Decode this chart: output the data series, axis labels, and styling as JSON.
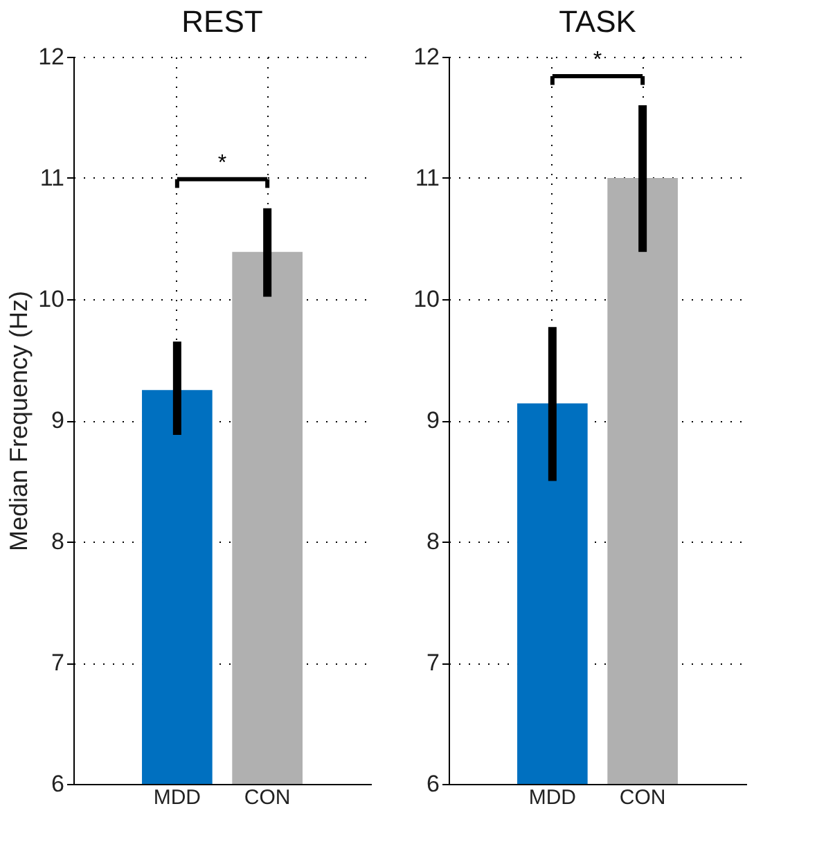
{
  "chart_data": [
    {
      "type": "bar",
      "title": "REST",
      "ylabel": "Median Frequency (Hz)",
      "categories": [
        "MDD",
        "CON"
      ],
      "values": [
        9.25,
        10.39
      ],
      "colors": [
        "#0070c0",
        "#b0b0b0"
      ],
      "errors": [
        [
          8.88,
          9.65
        ],
        [
          10.02,
          10.75
        ]
      ],
      "ylim": [
        6,
        12
      ],
      "yticks": [
        6,
        7,
        8,
        9,
        10,
        11,
        12
      ],
      "grid": true,
      "annotations": [
        "*"
      ]
    },
    {
      "type": "bar",
      "title": "TASK",
      "categories": [
        "MDD",
        "CON"
      ],
      "values": [
        9.14,
        11.0
      ],
      "colors": [
        "#0070c0",
        "#b0b0b0"
      ],
      "errors": [
        [
          8.5,
          9.77
        ],
        [
          10.39,
          11.6
        ]
      ],
      "ylim": [
        6,
        12
      ],
      "yticks": [
        6,
        7,
        8,
        9,
        10,
        11,
        12
      ],
      "grid": true,
      "annotations": [
        "*"
      ]
    }
  ]
}
